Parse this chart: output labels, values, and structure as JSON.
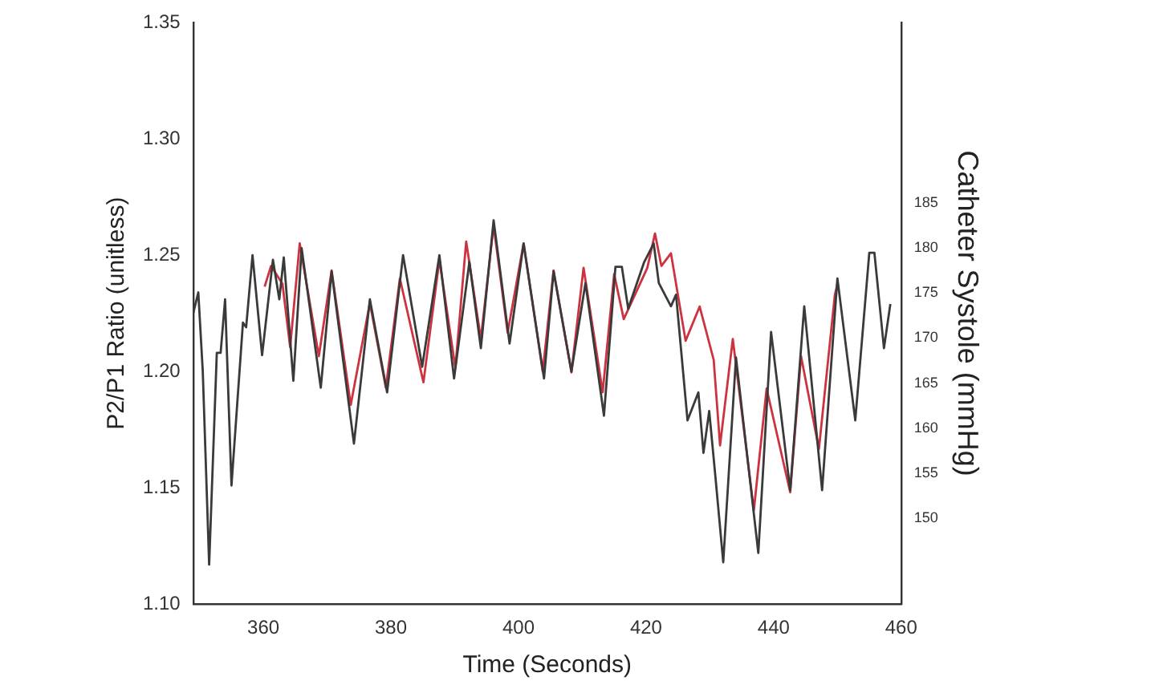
{
  "chart_data": {
    "type": "line",
    "xlabel": "Time (Seconds)",
    "ylabel": "P2/P1 Ratio (unitless)",
    "y2label": "Catheter Systole (mmHg)",
    "xlim": [
      349,
      460
    ],
    "xticks": [
      360,
      380,
      400,
      420,
      440,
      460
    ],
    "ylim": [
      1.1,
      1.35
    ],
    "yticks": [
      {
        "value": 1.1,
        "label": "1.10"
      },
      {
        "value": 1.15,
        "label": "1.15"
      },
      {
        "value": 1.2,
        "label": "1.20"
      },
      {
        "value": 1.25,
        "label": "1.25"
      },
      {
        "value": 1.3,
        "label": "1.30"
      },
      {
        "value": 1.35,
        "label": "1.35"
      }
    ],
    "y2lim": [
      140.5,
      205
    ],
    "y2ticks": [
      150,
      155,
      160,
      165,
      170,
      175,
      180,
      185
    ],
    "grid": false,
    "marker": "none",
    "line_style": "solid",
    "series": [
      {
        "color": "#3a3a3a",
        "x": [
          349.0,
          349.8,
          350.5,
          351.5,
          352.7,
          353.3,
          354.0,
          355.0,
          356.8,
          357.3,
          358.3,
          359.8,
          361.5,
          362.5,
          363.2,
          364.7,
          366.0,
          369.0,
          370.7,
          374.2,
          376.7,
          379.4,
          381.9,
          384.9,
          387.6,
          389.9,
          392.3,
          394.1,
          396.1,
          398.6,
          400.8,
          404.0,
          405.5,
          408.3,
          410.5,
          413.4,
          415.2,
          416.2,
          417.2,
          419.7,
          421.2,
          422.0,
          423.9,
          424.7,
          426.5,
          428.2,
          429.0,
          429.9,
          430.9,
          432.1,
          434.1,
          437.6,
          439.6,
          442.6,
          444.8,
          447.6,
          450.0,
          452.8,
          455.0,
          455.8,
          457.3,
          458.3
        ],
        "values": [
          1.225,
          1.234,
          1.2,
          1.117,
          1.208,
          1.208,
          1.231,
          1.151,
          1.221,
          1.219,
          1.25,
          1.207,
          1.248,
          1.231,
          1.249,
          1.196,
          1.253,
          1.193,
          1.243,
          1.169,
          1.231,
          1.191,
          1.25,
          1.202,
          1.25,
          1.197,
          1.247,
          1.21,
          1.265,
          1.212,
          1.255,
          1.197,
          1.243,
          1.2,
          1.238,
          1.181,
          1.245,
          1.245,
          1.227,
          1.247,
          1.255,
          1.238,
          1.228,
          1.233,
          1.179,
          1.191,
          1.165,
          1.183,
          1.154,
          1.118,
          1.206,
          1.122,
          1.217,
          1.149,
          1.228,
          1.149,
          1.24,
          1.179,
          1.251,
          1.251,
          1.21,
          1.229
        ]
      },
      {
        "color": "#cc3340",
        "axis": "y2",
        "x": [
          360.2,
          361.2,
          363.0,
          364.2,
          365.7,
          368.7,
          370.7,
          373.7,
          376.7,
          379.2,
          381.4,
          385.1,
          387.6,
          390.1,
          391.8,
          394.1,
          396.1,
          398.3,
          400.8,
          403.8,
          405.5,
          408.3,
          410.2,
          413.2,
          415.0,
          416.5,
          420.2,
          421.4,
          422.4,
          423.9,
          426.2,
          428.4,
          430.6,
          431.6,
          433.6,
          436.9,
          438.9,
          442.6,
          444.3,
          447.1,
          449.6,
          450.0
        ],
        "values": [
          175.7,
          178.0,
          176.0,
          169.0,
          180.5,
          168.0,
          177.5,
          162.6,
          173.9,
          164.5,
          176.6,
          165.1,
          178.7,
          166.7,
          180.7,
          169.9,
          182.5,
          170.6,
          180.5,
          166.3,
          177.5,
          166.2,
          177.8,
          164.0,
          177.1,
          172.1,
          177.8,
          181.6,
          178.0,
          179.4,
          169.7,
          173.5,
          167.6,
          158.1,
          169.9,
          150.9,
          164.4,
          152.9,
          168.0,
          157.7,
          174.8,
          176.0
        ]
      }
    ]
  }
}
